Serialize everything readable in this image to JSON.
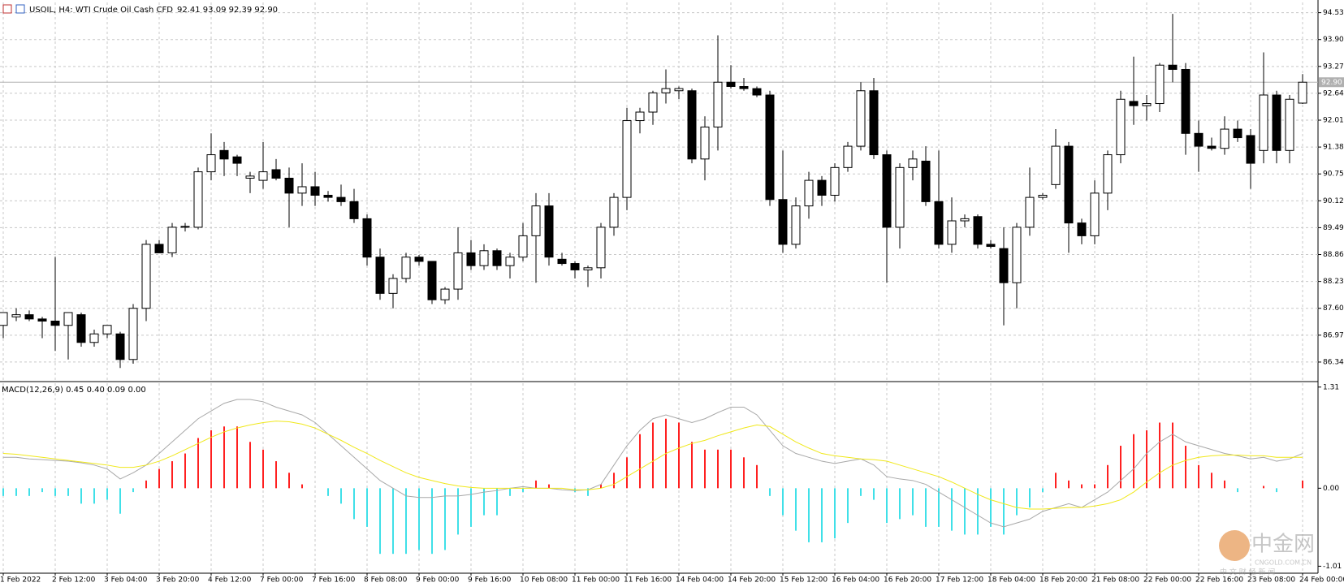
{
  "chart_data": [
    {
      "type": "candlestick",
      "title": "USOIL, H4:  WTI Crude Oil Cash CFD",
      "ohlc_text": "92.41 93.09 92.39 92.90",
      "categories": [
        "1 Feb 2022",
        null,
        null,
        null,
        "2 Feb 12:00",
        null,
        null,
        null,
        "3 Feb 04:00",
        null,
        null,
        null,
        "3 Feb 20:00",
        null,
        null,
        null,
        "4 Feb 12:00",
        null,
        null,
        null,
        "7 Feb 00:00",
        null,
        null,
        null,
        "7 Feb 16:00",
        null,
        null,
        null,
        "8 Feb 08:00",
        null,
        null,
        null,
        "9 Feb 00:00",
        null,
        null,
        null,
        "9 Feb 16:00",
        null,
        null,
        null,
        "10 Feb 08:00",
        null,
        null,
        null,
        "11 Feb 00:00",
        null,
        null,
        null,
        "11 Feb 16:00",
        null,
        null,
        null,
        "14 Feb 04:00",
        null,
        null,
        null,
        "14 Feb 20:00",
        null,
        null,
        null,
        "15 Feb 12:00",
        null,
        null,
        null,
        "16 Feb 04:00",
        null,
        null,
        null,
        "16 Feb 20:00",
        null,
        null,
        null,
        "17 Feb 12:00",
        null,
        null,
        null,
        "18 Feb 04:00",
        null,
        null,
        null,
        "18 Feb 20:00",
        null,
        null,
        null,
        "21 Feb 08:00",
        null,
        null,
        null,
        "22 Feb 00:00",
        null,
        null,
        null,
        "22 Feb 16:00",
        null,
        null,
        null,
        "23 Feb 08:00",
        null,
        null,
        null,
        "24 Feb 00:00"
      ],
      "open": [
        87.2,
        87.4,
        87.45,
        87.35,
        87.3,
        87.2,
        87.45,
        86.8,
        87.0,
        87.0,
        86.4,
        87.6,
        89.1,
        88.9,
        89.5,
        89.5,
        90.8,
        91.3,
        91.15,
        90.65,
        90.6,
        90.85,
        90.65,
        90.3,
        90.45,
        90.25,
        90.2,
        90.1,
        89.7,
        88.8,
        87.95,
        88.3,
        88.8,
        88.7,
        87.8,
        88.05,
        88.9,
        88.6,
        88.95,
        88.6,
        88.8,
        89.3,
        90.0,
        88.75,
        88.65,
        88.5,
        88.55,
        89.5,
        90.2,
        92.0,
        92.2,
        92.65,
        92.7,
        92.7,
        91.1,
        91.85,
        92.9,
        92.8,
        92.75,
        92.6,
        90.15,
        89.1,
        90.0,
        90.6,
        90.25,
        90.9,
        91.4,
        92.7,
        91.2,
        89.5,
        90.9,
        91.05,
        90.1,
        89.1,
        89.65,
        89.75,
        89.1,
        89.0,
        88.2,
        89.5,
        90.2,
        90.5,
        91.4,
        89.6,
        89.3,
        90.3,
        91.2,
        92.45,
        92.35,
        92.4,
        93.3,
        93.2,
        91.7,
        91.4,
        91.35,
        91.8,
        91.65,
        91.3,
        92.6,
        91.3,
        92.41
      ],
      "high": [
        87.5,
        87.6,
        87.55,
        87.4,
        88.8,
        87.5,
        87.5,
        87.1,
        87.2,
        87.05,
        87.7,
        89.2,
        89.2,
        89.6,
        89.6,
        90.9,
        91.7,
        91.5,
        91.2,
        90.8,
        91.5,
        91.1,
        90.9,
        91.0,
        90.8,
        90.35,
        90.5,
        90.4,
        89.8,
        89.0,
        88.4,
        88.9,
        88.85,
        88.7,
        88.1,
        89.5,
        89.2,
        89.1,
        89.0,
        88.9,
        89.6,
        90.3,
        90.3,
        88.9,
        88.7,
        88.6,
        89.6,
        90.3,
        92.3,
        92.3,
        92.7,
        93.2,
        92.8,
        92.75,
        92.1,
        94.0,
        93.3,
        93.0,
        92.8,
        92.7,
        91.3,
        90.2,
        90.8,
        90.7,
        91.0,
        91.5,
        92.9,
        93.0,
        91.3,
        91.0,
        91.3,
        91.4,
        91.3,
        90.2,
        89.8,
        89.8,
        89.2,
        89.5,
        89.6,
        90.9,
        90.3,
        91.8,
        91.5,
        89.7,
        90.6,
        91.3,
        92.7,
        93.5,
        92.6,
        93.35,
        94.5,
        93.35,
        92.0,
        91.6,
        92.1,
        92.0,
        91.8,
        93.6,
        92.7,
        92.6,
        93.09
      ],
      "low": [
        86.9,
        87.3,
        87.3,
        86.9,
        86.6,
        86.4,
        86.7,
        86.7,
        86.9,
        86.2,
        86.3,
        87.3,
        88.9,
        88.8,
        89.4,
        89.45,
        90.6,
        90.7,
        90.7,
        90.3,
        90.4,
        90.6,
        89.5,
        90.0,
        90.0,
        90.1,
        90.0,
        89.6,
        88.6,
        87.8,
        87.6,
        88.2,
        88.6,
        87.7,
        87.7,
        87.8,
        88.5,
        88.5,
        88.5,
        88.3,
        88.7,
        88.2,
        88.6,
        88.6,
        88.3,
        88.1,
        88.3,
        89.3,
        89.9,
        91.7,
        91.9,
        92.4,
        92.5,
        91.0,
        90.6,
        91.3,
        92.75,
        92.7,
        92.55,
        90.0,
        88.9,
        89.0,
        89.7,
        90.0,
        90.1,
        90.8,
        91.3,
        91.1,
        88.2,
        89.0,
        90.6,
        90.0,
        89.0,
        88.9,
        89.5,
        89.0,
        89.0,
        87.2,
        87.6,
        89.3,
        90.15,
        90.4,
        88.9,
        89.1,
        89.1,
        89.9,
        91.0,
        91.9,
        92.0,
        92.2,
        92.9,
        91.2,
        90.8,
        91.3,
        91.2,
        91.5,
        90.4,
        91.0,
        91.0,
        91.0,
        92.39
      ],
      "close": [
        87.5,
        87.45,
        87.35,
        87.3,
        87.2,
        87.5,
        86.8,
        87.0,
        87.2,
        86.4,
        87.6,
        89.1,
        88.9,
        89.5,
        89.52,
        90.8,
        91.2,
        91.1,
        91.0,
        90.7,
        90.8,
        90.65,
        90.3,
        90.45,
        90.25,
        90.2,
        90.1,
        89.7,
        88.8,
        87.95,
        88.3,
        88.8,
        88.7,
        87.8,
        88.05,
        88.9,
        88.6,
        88.95,
        88.6,
        88.8,
        89.3,
        90.0,
        88.8,
        88.65,
        88.5,
        88.55,
        89.5,
        90.2,
        92.0,
        92.2,
        92.65,
        92.75,
        92.75,
        91.1,
        91.85,
        92.9,
        92.8,
        92.75,
        92.6,
        90.15,
        89.1,
        90.0,
        90.6,
        90.25,
        90.9,
        91.4,
        92.7,
        91.2,
        89.5,
        90.9,
        91.1,
        90.1,
        89.1,
        89.65,
        89.7,
        89.1,
        89.05,
        88.2,
        89.5,
        90.2,
        90.25,
        91.4,
        89.6,
        89.3,
        90.3,
        91.2,
        92.5,
        92.35,
        92.4,
        93.3,
        93.2,
        91.7,
        91.4,
        91.35,
        91.8,
        91.6,
        91.0,
        92.6,
        91.3,
        92.5,
        92.9
      ],
      "up_color": "#ffffff",
      "down_color": "#000000",
      "wick_color": "#000000",
      "ylim": [
        85.92,
        94.77
      ],
      "yticks": [
        94.53,
        {
          "value": 93.9,
          "label": "93.90"
        },
        93.27,
        92.64,
        92.01,
        91.38,
        90.75,
        90.12,
        89.49,
        88.86,
        88.23,
        {
          "value": 87.6,
          "label": "87.60"
        },
        86.97,
        86.34
      ],
      "current_price": {
        "value": 92.9,
        "label": "92.90"
      },
      "grid": true
    },
    {
      "type": "macd",
      "title": "MACD(12,26,9) 0.45 0.40 0.09 0.00",
      "ylim": [
        -1.09,
        1.36
      ],
      "yticks": [
        1.31,
        {
          "value": 0,
          "label": "0.00"
        },
        -1.01
      ],
      "grid": false,
      "series": [
        {
          "style": "histogram",
          "positive_color": "#ff2020",
          "negative_color": "#40e0e8",
          "values": [
            -0.1,
            -0.1,
            -0.1,
            -0.05,
            -0.1,
            -0.1,
            -0.2,
            -0.2,
            -0.15,
            -0.33,
            -0.05,
            0.1,
            0.25,
            0.35,
            0.45,
            0.65,
            0.75,
            0.8,
            0.8,
            0.6,
            0.5,
            0.35,
            0.2,
            0.05,
            0,
            -0.1,
            -0.2,
            -0.4,
            -0.5,
            -0.85,
            -0.85,
            -0.85,
            -0.8,
            -0.85,
            -0.8,
            -0.6,
            -0.5,
            -0.35,
            -0.35,
            -0.1,
            -0.05,
            0.1,
            0.05,
            0,
            -0.05,
            -0.1,
            0.05,
            0.2,
            0.4,
            0.7,
            0.85,
            0.9,
            0.85,
            0.6,
            0.5,
            0.5,
            0.5,
            0.4,
            0.3,
            -0.1,
            -0.35,
            -0.55,
            -0.7,
            -0.7,
            -0.65,
            -0.45,
            -0.1,
            -0.15,
            -0.45,
            -0.4,
            -0.35,
            -0.5,
            -0.5,
            -0.55,
            -0.6,
            -0.6,
            -0.5,
            -0.6,
            -0.35,
            -0.25,
            -0.05,
            0.2,
            0.1,
            0.05,
            0.05,
            0.3,
            0.55,
            0.7,
            0.75,
            0.85,
            0.85,
            0.55,
            0.3,
            0.2,
            0.1,
            -0.05,
            0,
            0.03,
            -0.05,
            0,
            0.1
          ]
        },
        {
          "style": "line",
          "color": "#a8a8a8",
          "values": [
            0.4,
            0.4,
            0.38,
            0.37,
            0.36,
            0.35,
            0.33,
            0.3,
            0.25,
            0.12,
            0.2,
            0.3,
            0.45,
            0.6,
            0.75,
            0.9,
            1.0,
            1.1,
            1.15,
            1.15,
            1.12,
            1.05,
            1.0,
            0.95,
            0.85,
            0.7,
            0.55,
            0.4,
            0.25,
            0.1,
            0.0,
            -0.1,
            -0.12,
            -0.12,
            -0.1,
            -0.1,
            -0.08,
            -0.05,
            -0.03,
            0.0,
            0.02,
            0.0,
            0.0,
            -0.02,
            -0.03,
            -0.02,
            0.05,
            0.3,
            0.55,
            0.75,
            0.9,
            0.95,
            0.9,
            0.85,
            0.9,
            0.98,
            1.05,
            1.05,
            0.95,
            0.75,
            0.55,
            0.45,
            0.4,
            0.35,
            0.32,
            0.35,
            0.38,
            0.3,
            0.15,
            0.12,
            0.1,
            0.05,
            -0.05,
            -0.15,
            -0.25,
            -0.35,
            -0.45,
            -0.5,
            -0.45,
            -0.4,
            -0.3,
            -0.25,
            -0.2,
            -0.25,
            -0.15,
            -0.05,
            0.1,
            0.25,
            0.45,
            0.6,
            0.7,
            0.6,
            0.55,
            0.5,
            0.45,
            0.42,
            0.38,
            0.4,
            0.35,
            0.38,
            0.45
          ]
        },
        {
          "style": "line",
          "color": "#f0e81a",
          "values": [
            0.45,
            0.44,
            0.42,
            0.4,
            0.38,
            0.36,
            0.34,
            0.32,
            0.3,
            0.27,
            0.27,
            0.3,
            0.35,
            0.42,
            0.5,
            0.58,
            0.66,
            0.73,
            0.78,
            0.82,
            0.85,
            0.87,
            0.86,
            0.83,
            0.78,
            0.7,
            0.62,
            0.53,
            0.45,
            0.36,
            0.28,
            0.2,
            0.14,
            0.1,
            0.06,
            0.03,
            0.01,
            0.0,
            0.0,
            0.0,
            0.0,
            0.0,
            0.0,
            0.0,
            -0.02,
            -0.02,
            0.0,
            0.05,
            0.15,
            0.25,
            0.35,
            0.45,
            0.52,
            0.58,
            0.62,
            0.68,
            0.73,
            0.78,
            0.82,
            0.8,
            0.7,
            0.6,
            0.52,
            0.45,
            0.42,
            0.4,
            0.38,
            0.37,
            0.35,
            0.3,
            0.25,
            0.2,
            0.15,
            0.08,
            0.0,
            -0.08,
            -0.15,
            -0.2,
            -0.25,
            -0.27,
            -0.27,
            -0.26,
            -0.25,
            -0.25,
            -0.23,
            -0.2,
            -0.15,
            -0.05,
            0.08,
            0.2,
            0.3,
            0.36,
            0.4,
            0.42,
            0.43,
            0.43,
            0.42,
            0.42,
            0.4,
            0.4,
            0.4
          ]
        }
      ]
    }
  ],
  "watermark": {
    "title": "中金网",
    "site": "CNGOLD.COM.CN",
    "tagline": "中 文 财 经 新 闻"
  }
}
